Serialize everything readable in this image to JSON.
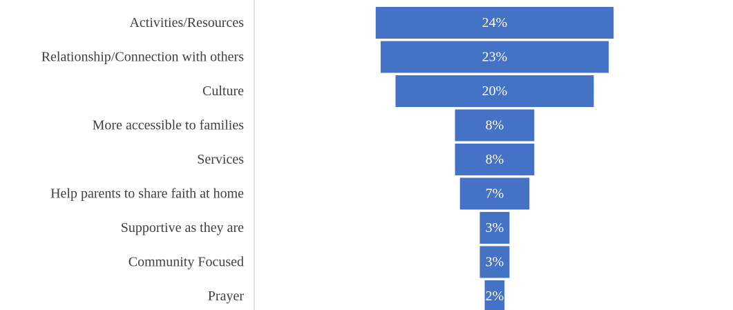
{
  "chart_data": {
    "type": "bar",
    "orientation": "horizontal",
    "style": "funnel",
    "categories": [
      "Activities/Resources",
      "Relationship/Connection with others",
      "Culture",
      "More accessible to families",
      "Services",
      "Help parents to share faith at home",
      "Supportive as they are",
      "Community Focused",
      "Prayer"
    ],
    "values": [
      24,
      23,
      20,
      8,
      8,
      7,
      3,
      3,
      2
    ],
    "value_labels": [
      "24%",
      "23%",
      "20%",
      "8%",
      "8%",
      "7%",
      "3%",
      "3%",
      "2%"
    ],
    "unit": "%",
    "title": "",
    "xlabel": "",
    "ylabel": "",
    "grid": false,
    "legend": "none",
    "colors": {
      "bar": "#4472C4",
      "bar_label": "#FFFFFF",
      "category_label": "#404040",
      "axis": "#D9D9D9"
    }
  }
}
